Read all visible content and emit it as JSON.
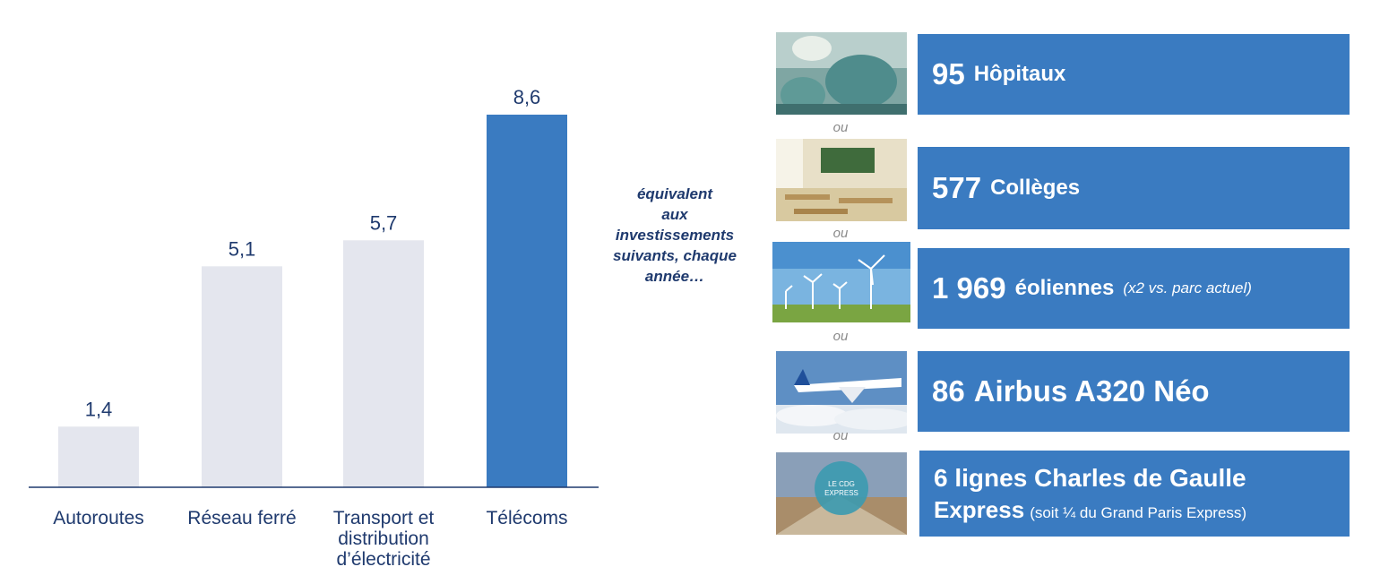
{
  "chart_data": {
    "type": "bar",
    "categories": [
      "Autoroutes",
      "Réseau ferré",
      "Transport et\ndistribution\nd’électricité",
      "Télécoms"
    ],
    "values": [
      1.4,
      5.1,
      5.7,
      8.6
    ],
    "value_labels": [
      "1,4",
      "5,1",
      "5,7",
      "8,6"
    ],
    "highlight_index": 3,
    "colors": {
      "default": "#e4e6ee",
      "highlight": "#3a7bc1",
      "axis": "#1f3a6e",
      "label": "#1f3a6e"
    },
    "ylim": [
      0,
      8.6
    ],
    "grid": false,
    "legend": "none"
  },
  "middle_text": "équivalent\naux\ninvestissements\nsuivants, chaque\nannée…",
  "equivalents": [
    {
      "number": "95",
      "label": "Hôpitaux",
      "image": "surgery-photo"
    },
    {
      "number": "577",
      "label": "Collèges",
      "image": "classroom-photo"
    },
    {
      "number": "1 969",
      "label": "éoliennes",
      "note": "(x2 vs. parc actuel)",
      "image": "wind-turbines-photo"
    },
    {
      "number": "86",
      "label": "Airbus A320 Néo",
      "image": "airplane-photo"
    },
    {
      "line1": "6 lignes Charles de Gaulle",
      "line2_bold": "Express",
      "line2_regular": "(soit ¼ du Grand Paris Express)",
      "image": "cdg-express-photo",
      "badge": "LE CDG EXPRESS"
    }
  ],
  "separator": "ou"
}
